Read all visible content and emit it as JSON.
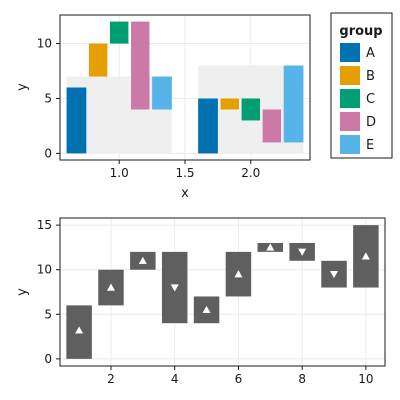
{
  "chart_data": [
    {
      "type": "bar",
      "xlabel": "x",
      "ylabel": "y",
      "xlim": [
        0.55,
        2.45
      ],
      "ylim": [
        -0.6,
        12.6
      ],
      "xticks": [
        1.0,
        1.5,
        2.0
      ],
      "xtick_labels": [
        "1.0",
        "1.5",
        "2.0"
      ],
      "yticks": [
        0,
        5,
        10
      ],
      "ytick_labels": [
        "0",
        "5",
        "10"
      ],
      "grid": true,
      "background_bands": [
        {
          "x": [
            0.6,
            1.4
          ],
          "y": [
            0,
            7
          ]
        },
        {
          "x": [
            1.6,
            2.4
          ],
          "y": [
            0,
            8
          ]
        }
      ],
      "legend": {
        "title": "group",
        "placement": "right",
        "entries": [
          {
            "label": "A",
            "color": "#0072b2"
          },
          {
            "label": "B",
            "color": "#e69f00"
          },
          {
            "label": "C",
            "color": "#009e73"
          },
          {
            "label": "D",
            "color": "#cc79a7"
          },
          {
            "label": "E",
            "color": "#56b4e9"
          }
        ]
      },
      "bars": [
        {
          "group": "A",
          "x": [
            0.6,
            0.75
          ],
          "y": [
            0,
            6
          ]
        },
        {
          "group": "B",
          "x": [
            0.77,
            0.91
          ],
          "y": [
            7,
            10
          ]
        },
        {
          "group": "C",
          "x": [
            0.93,
            1.07
          ],
          "y": [
            10,
            12
          ]
        },
        {
          "group": "D",
          "x": [
            1.09,
            1.23
          ],
          "y": [
            4,
            12
          ]
        },
        {
          "group": "E",
          "x": [
            1.25,
            1.4
          ],
          "y": [
            4,
            7
          ]
        },
        {
          "group": "A",
          "x": [
            1.6,
            1.75
          ],
          "y": [
            0,
            5
          ]
        },
        {
          "group": "B",
          "x": [
            1.77,
            1.91
          ],
          "y": [
            4,
            5
          ]
        },
        {
          "group": "C",
          "x": [
            1.93,
            2.07
          ],
          "y": [
            3,
            5
          ]
        },
        {
          "group": "D",
          "x": [
            2.09,
            2.23
          ],
          "y": [
            1,
            4
          ]
        },
        {
          "group": "E",
          "x": [
            2.25,
            2.4
          ],
          "y": [
            1,
            8
          ]
        }
      ]
    },
    {
      "type": "bar",
      "xlabel": "",
      "ylabel": "y",
      "xlim": [
        0.4,
        10.6
      ],
      "ylim": [
        -0.8,
        15.8
      ],
      "xticks": [
        2,
        4,
        6,
        8,
        10
      ],
      "xtick_labels": [
        "2",
        "4",
        "6",
        "8",
        "10"
      ],
      "yticks": [
        0,
        5,
        10,
        15
      ],
      "ytick_labels": [
        "0",
        "5",
        "10",
        "15"
      ],
      "grid": true,
      "bar_color": "#5f5f5f",
      "marker_color": "#ffffff",
      "bars": [
        {
          "x": 1,
          "low": 0,
          "high": 6,
          "marker": 3.2,
          "direction": "up"
        },
        {
          "x": 2,
          "low": 6,
          "high": 10,
          "marker": 8,
          "direction": "up"
        },
        {
          "x": 3,
          "low": 10,
          "high": 12,
          "marker": 11,
          "direction": "up"
        },
        {
          "x": 4,
          "low": 4,
          "high": 12,
          "marker": 8,
          "direction": "down"
        },
        {
          "x": 5,
          "low": 4,
          "high": 7,
          "marker": 5.5,
          "direction": "up"
        },
        {
          "x": 6,
          "low": 7,
          "high": 12,
          "marker": 9.5,
          "direction": "up"
        },
        {
          "x": 7,
          "low": 12,
          "high": 13,
          "marker": 12.5,
          "direction": "up"
        },
        {
          "x": 8,
          "low": 11,
          "high": 13,
          "marker": 12,
          "direction": "down"
        },
        {
          "x": 9,
          "low": 8,
          "high": 11,
          "marker": 9.5,
          "direction": "down"
        },
        {
          "x": 10,
          "low": 8,
          "high": 15,
          "marker": 11.5,
          "direction": "up"
        }
      ]
    }
  ]
}
